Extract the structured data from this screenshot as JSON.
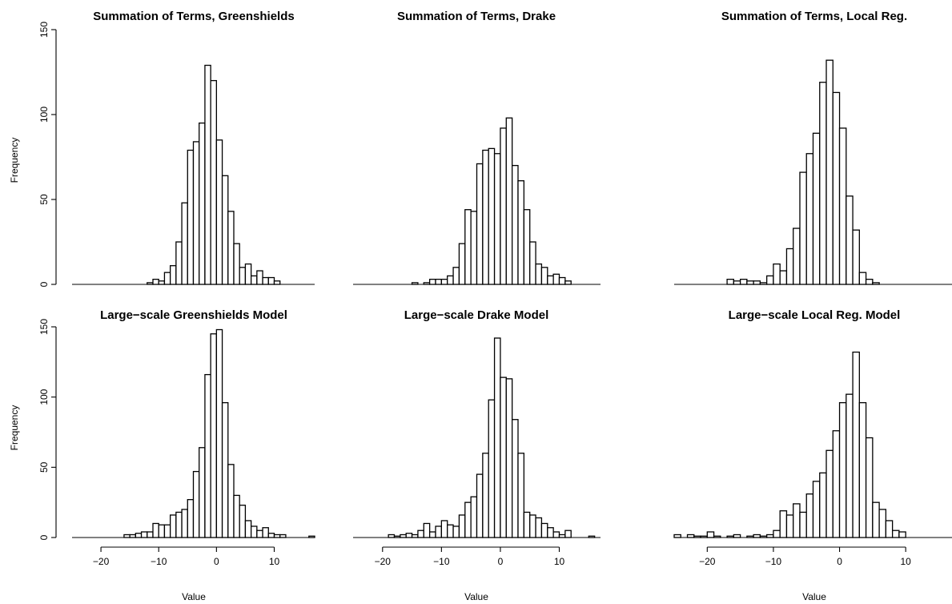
{
  "chart_data": [
    {
      "type": "bar",
      "title": "Summation of Terms, Greenshields",
      "xlabel": "",
      "ylabel": "Frequency",
      "xlim": [
        -25,
        17
      ],
      "ylim": [
        0,
        150
      ],
      "yticks": [
        0,
        50,
        100,
        150
      ],
      "bin_width": 1,
      "bin_start": -25,
      "values": [
        0,
        0,
        0,
        0,
        0,
        0,
        0,
        0,
        0,
        0,
        0,
        0,
        0,
        1,
        3,
        2,
        7,
        11,
        25,
        48,
        79,
        84,
        95,
        129,
        120,
        85,
        64,
        43,
        24,
        10,
        12,
        5,
        8,
        4,
        4,
        2,
        0,
        0,
        0,
        0,
        0,
        0
      ]
    },
    {
      "type": "bar",
      "title": "Summation of Terms, Drake",
      "xlabel": "",
      "ylabel": "",
      "xlim": [
        -25,
        17
      ],
      "ylim": [
        0,
        150
      ],
      "yticks": [],
      "bin_width": 1,
      "bin_start": -25,
      "values": [
        0,
        0,
        0,
        0,
        0,
        0,
        0,
        0,
        0,
        0,
        1,
        0,
        1,
        3,
        3,
        3,
        5,
        10,
        24,
        44,
        43,
        71,
        79,
        80,
        77,
        92,
        98,
        70,
        61,
        44,
        25,
        12,
        10,
        5,
        6,
        4,
        2,
        0,
        0,
        0,
        0,
        0
      ]
    },
    {
      "type": "bar",
      "title": "Summation of Terms, Local Reg.",
      "xlabel": "",
      "ylabel": "",
      "xlim": [
        -25,
        17
      ],
      "ylim": [
        0,
        150
      ],
      "yticks": [],
      "bin_width": 1,
      "bin_start": -25,
      "values": [
        0,
        0,
        0,
        0,
        0,
        0,
        0,
        0,
        3,
        2,
        3,
        2,
        2,
        1,
        5,
        12,
        8,
        21,
        33,
        66,
        77,
        89,
        119,
        132,
        113,
        92,
        52,
        32,
        7,
        3,
        1,
        0,
        0,
        0,
        0,
        0,
        0,
        0,
        0,
        0,
        0,
        0
      ]
    },
    {
      "type": "bar",
      "title": "Large−scale Greenshields Model",
      "xlabel": "Value",
      "ylabel": "Frequency",
      "xlim": [
        -25,
        17
      ],
      "ylim": [
        0,
        150
      ],
      "yticks": [
        0,
        50,
        100,
        150
      ],
      "xticks": [
        -20,
        -10,
        0,
        10
      ],
      "bin_width": 1,
      "bin_start": -25,
      "values": [
        0,
        0,
        0,
        0,
        0,
        0,
        0,
        0,
        0,
        2,
        2,
        3,
        4,
        4,
        10,
        9,
        9,
        16,
        18,
        20,
        27,
        47,
        64,
        116,
        145,
        148,
        96,
        52,
        30,
        23,
        12,
        8,
        5,
        7,
        3,
        2,
        2,
        0,
        0,
        0,
        0,
        1
      ]
    },
    {
      "type": "bar",
      "title": "Large−scale Drake Model",
      "xlabel": "Value",
      "ylabel": "",
      "xlim": [
        -25,
        17
      ],
      "ylim": [
        0,
        150
      ],
      "yticks": [],
      "xticks": [
        -20,
        -10,
        0,
        10
      ],
      "bin_width": 1,
      "bin_start": -25,
      "values": [
        0,
        0,
        0,
        0,
        0,
        0,
        2,
        1,
        2,
        3,
        2,
        5,
        10,
        4,
        8,
        12,
        9,
        8,
        16,
        25,
        29,
        45,
        60,
        98,
        142,
        114,
        113,
        84,
        60,
        18,
        16,
        14,
        10,
        7,
        4,
        2,
        5,
        0,
        0,
        0,
        1,
        0
      ]
    },
    {
      "type": "bar",
      "title": "Large−scale Local Reg. Model",
      "xlabel": "Value",
      "ylabel": "",
      "xlim": [
        -25,
        17
      ],
      "ylim": [
        0,
        150
      ],
      "yticks": [],
      "xticks": [
        -20,
        -10,
        0,
        10
      ],
      "bin_width": 1,
      "bin_start": -25,
      "values": [
        2,
        0,
        2,
        1,
        1,
        4,
        1,
        0,
        1,
        2,
        0,
        1,
        2,
        1,
        2,
        5,
        19,
        16,
        24,
        18,
        31,
        40,
        46,
        62,
        76,
        96,
        102,
        132,
        96,
        71,
        25,
        20,
        12,
        5,
        4,
        0,
        0,
        0,
        0,
        0,
        0,
        0
      ]
    }
  ]
}
